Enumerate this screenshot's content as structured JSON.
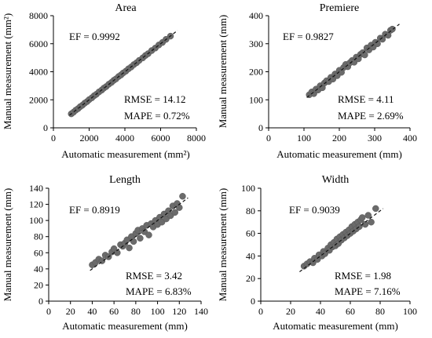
{
  "chart_data": [
    {
      "type": "scatter",
      "title": "Area",
      "xlabel": "Automatic measurement (mm²)",
      "ylabel": "Manual measurement (mm²)",
      "xlim": [
        0,
        8000
      ],
      "ylim": [
        0,
        8000
      ],
      "xticks": [
        "0",
        "2000",
        "4000",
        "6000",
        "8000"
      ],
      "yticks": [
        "0",
        "2000",
        "4000",
        "6000",
        "8000"
      ],
      "ef": "EF = 0.9992",
      "rmse": "RMSE = 14.12",
      "mape": "MAPE = 0.72%",
      "fit_line": [
        [
          900,
          900
        ],
        [
          6950,
          6950
        ]
      ],
      "x": [
        1000,
        1120,
        1250,
        1380,
        1500,
        1620,
        1750,
        1880,
        2000,
        2150,
        2280,
        2400,
        2550,
        2700,
        2820,
        2950,
        3100,
        3250,
        3380,
        3500,
        3650,
        3780,
        3900,
        4050,
        4200,
        4350,
        4500,
        4650,
        4800,
        5000,
        5150,
        5300,
        5500,
        5700,
        5900,
        6100,
        6300,
        6550
      ],
      "y": [
        1000,
        1110,
        1260,
        1370,
        1510,
        1610,
        1760,
        1870,
        2010,
        2140,
        2290,
        2390,
        2560,
        2690,
        2830,
        2940,
        3110,
        3240,
        3390,
        3490,
        3660,
        3770,
        3910,
        4040,
        4210,
        4340,
        4510,
        4640,
        4810,
        4990,
        5160,
        5290,
        5510,
        5690,
        5910,
        6090,
        6310,
        6540
      ]
    },
    {
      "type": "scatter",
      "title": "Premiere",
      "xlabel": "Automatic measurement (mm)",
      "ylabel": "Manual measurement (mm)",
      "xlim": [
        0,
        400
      ],
      "ylim": [
        0,
        400
      ],
      "xticks": [
        "0",
        "100",
        "200",
        "300",
        "400"
      ],
      "yticks": [
        "0",
        "100",
        "200",
        "300",
        "400"
      ],
      "ef": "EF = 0.9827",
      "rmse": "RMSE =  4.11",
      "mape": "MAPE = 2.69%",
      "fit_line": [
        [
          108,
          108
        ],
        [
          370,
          370
        ]
      ],
      "x": [
        115,
        122,
        128,
        134,
        140,
        146,
        152,
        158,
        164,
        170,
        176,
        182,
        188,
        194,
        200,
        206,
        212,
        218,
        224,
        230,
        236,
        242,
        248,
        254,
        260,
        266,
        272,
        278,
        284,
        290,
        296,
        302,
        308,
        316,
        322,
        330,
        338,
        345,
        350
      ],
      "y": [
        118,
        128,
        122,
        138,
        135,
        150,
        143,
        160,
        168,
        165,
        180,
        174,
        192,
        186,
        205,
        198,
        215,
        226,
        218,
        232,
        240,
        234,
        252,
        246,
        262,
        268,
        260,
        285,
        278,
        295,
        288,
        305,
        300,
        320,
        316,
        334,
        330,
        348,
        352
      ]
    },
    {
      "type": "scatter",
      "title": "Length",
      "xlabel": "Automatic measurement (mm)",
      "ylabel": "Manual measurement (mm)",
      "xlim": [
        0,
        140
      ],
      "ylim": [
        0,
        140
      ],
      "xticks": [
        "0",
        "20",
        "40",
        "60",
        "80",
        "100",
        "120",
        "140"
      ],
      "yticks": [
        "0",
        "20",
        "40",
        "60",
        "80",
        "100",
        "120",
        "140"
      ],
      "ef": "EF = 0.8919",
      "rmse": "RMSE = 3.42",
      "mape": "MAPE = 6.83%",
      "fit_line": [
        [
          38,
          38
        ],
        [
          128,
          128
        ]
      ],
      "x": [
        40,
        43,
        46,
        49,
        52,
        55,
        58,
        60,
        63,
        66,
        68,
        70,
        72,
        74,
        76,
        78,
        80,
        82,
        84,
        86,
        88,
        90,
        92,
        94,
        96,
        98,
        100,
        102,
        104,
        106,
        108,
        110,
        112,
        114,
        116,
        118,
        120,
        123
      ],
      "y": [
        45,
        48,
        52,
        50,
        57,
        55,
        61,
        65,
        60,
        70,
        68,
        72,
        76,
        66,
        80,
        74,
        84,
        88,
        78,
        90,
        86,
        94,
        82,
        96,
        92,
        100,
        95,
        104,
        98,
        108,
        102,
        112,
        106,
        118,
        110,
        121,
        116,
        130
      ]
    },
    {
      "type": "scatter",
      "title": "Width",
      "xlabel": "Automatic measurement (mm)",
      "ylabel": "Manual  measurement (mm)",
      "xlim": [
        0,
        100
      ],
      "ylim": [
        0,
        100
      ],
      "xticks": [
        "0",
        "20",
        "40",
        "60",
        "80",
        "100"
      ],
      "yticks": [
        "0",
        "20",
        "40",
        "60",
        "80",
        "100"
      ],
      "ef": "EF = 0.9039",
      "rmse": "RMSE = 1.98",
      "mape": "MAPE = 7.16%",
      "fit_line": [
        [
          26,
          26
        ],
        [
          82,
          82
        ]
      ],
      "x": [
        29,
        31,
        33,
        35,
        36,
        38,
        39,
        41,
        42,
        43,
        45,
        46,
        47,
        48,
        49,
        50,
        51,
        52,
        53,
        54,
        55,
        56,
        57,
        58,
        59,
        60,
        61,
        62,
        63,
        64,
        65,
        66,
        67,
        68,
        70,
        72,
        74,
        77
      ],
      "y": [
        31,
        33,
        35,
        34,
        38,
        37,
        41,
        40,
        44,
        42,
        47,
        45,
        50,
        48,
        52,
        49,
        55,
        51,
        57,
        54,
        59,
        56,
        61,
        58,
        63,
        60,
        66,
        62,
        68,
        64,
        70,
        66,
        72,
        74,
        68,
        76,
        70,
        82
      ]
    }
  ]
}
